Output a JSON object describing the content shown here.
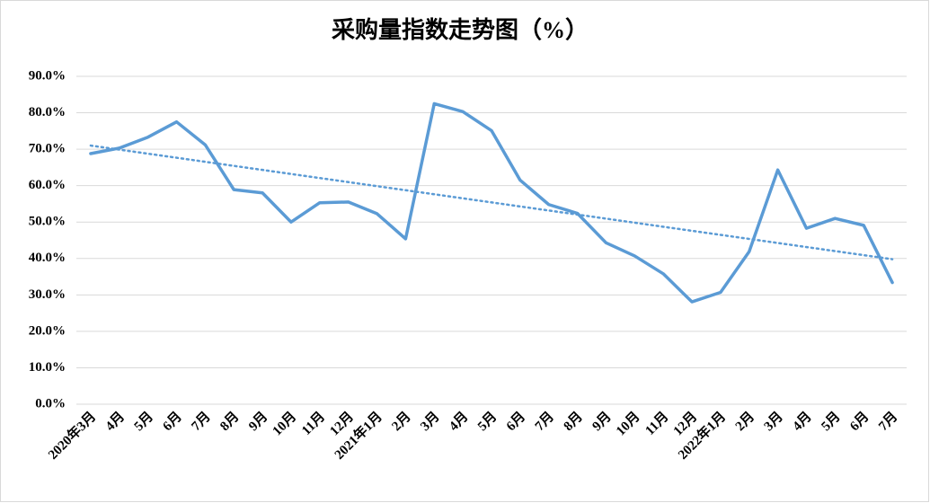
{
  "chart_data": {
    "type": "line",
    "title": "采购量指数走势图（%）",
    "categories": [
      "2020年3月",
      "4月",
      "5月",
      "6月",
      "7月",
      "8月",
      "9月",
      "10月",
      "11月",
      "12月",
      "2021年1月",
      "2月",
      "3月",
      "4月",
      "5月",
      "6月",
      "7月",
      "8月",
      "9月",
      "10月",
      "11月",
      "12月",
      "2022年1月",
      "2月",
      "3月",
      "4月",
      "5月",
      "6月",
      "7月"
    ],
    "series": [
      {
        "color": "#5b9bd5",
        "values": [
          68.8,
          70.3,
          73.3,
          77.5,
          71.2,
          58.9,
          58.0,
          50.0,
          55.3,
          55.5,
          52.3,
          45.4,
          82.5,
          80.3,
          75.1,
          61.5,
          54.8,
          52.4,
          44.3,
          40.7,
          35.8,
          28.1,
          30.7,
          41.9,
          64.3,
          48.3,
          51.0,
          49.1,
          33.4
        ]
      }
    ],
    "trendline": {
      "color": "#5b9bd5",
      "values": [
        71.0,
        39.8
      ]
    },
    "ylim": [
      0,
      90
    ],
    "yticks": [
      {
        "value": 0,
        "label": "0.0%"
      },
      {
        "value": 10,
        "label": "10.0%"
      },
      {
        "value": 20,
        "label": "20.0%"
      },
      {
        "value": 30,
        "label": "30.0%"
      },
      {
        "value": 40,
        "label": "40.0%"
      },
      {
        "value": 50,
        "label": "50.0%"
      },
      {
        "value": 60,
        "label": "60.0%"
      },
      {
        "value": 70,
        "label": "70.0%"
      },
      {
        "value": 80,
        "label": "80.0%"
      },
      {
        "value": 90,
        "label": "90.0%"
      }
    ],
    "grid": true
  }
}
